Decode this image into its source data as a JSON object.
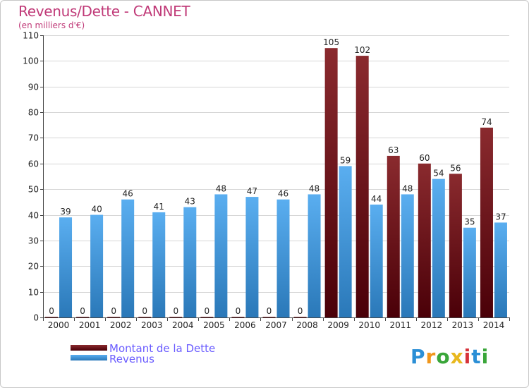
{
  "header": {
    "title": "Revenus/Dette - CANNET",
    "subtitle": "(en milliers d'€)"
  },
  "legend": {
    "debt_label": "Montant de la Dette",
    "revenue_label": "Revenus"
  },
  "logo": {
    "letters": [
      "P",
      "r",
      "o",
      "x",
      "i",
      "t",
      "i"
    ],
    "colors": [
      "#2b8fd6",
      "#f0961c",
      "#3aa63a",
      "#e8b81e",
      "#d6323a",
      "#2b8fd6",
      "#3aa63a"
    ]
  },
  "colors": {
    "debt_top": "#8a2a2e",
    "debt_bottom": "#4a0008",
    "revenue_top": "#5aaef0",
    "revenue_bottom": "#2a78b8",
    "grid": "#d6d6d6",
    "axis": "#444444"
  },
  "chart_data": {
    "type": "bar",
    "title": "Revenus/Dette - CANNET",
    "ylabel": "(en milliers d'€)",
    "xlabel": "",
    "ylim": [
      0,
      110
    ],
    "yticks": [
      0,
      10,
      20,
      30,
      40,
      50,
      60,
      70,
      80,
      90,
      100,
      110
    ],
    "grid": true,
    "categories": [
      "2000",
      "2001",
      "2002",
      "2003",
      "2004",
      "2005",
      "2006",
      "2007",
      "2008",
      "2009",
      "2010",
      "2011",
      "2012",
      "2013",
      "2014"
    ],
    "series": [
      {
        "name": "Montant de la Dette",
        "values": [
          0,
          0,
          0,
          0,
          0,
          0,
          0,
          0,
          0,
          105,
          102,
          63,
          60,
          56,
          74
        ]
      },
      {
        "name": "Revenus",
        "values": [
          39,
          40,
          46,
          41,
          43,
          48,
          47,
          46,
          48,
          59,
          44,
          48,
          54,
          35,
          37
        ]
      }
    ]
  }
}
